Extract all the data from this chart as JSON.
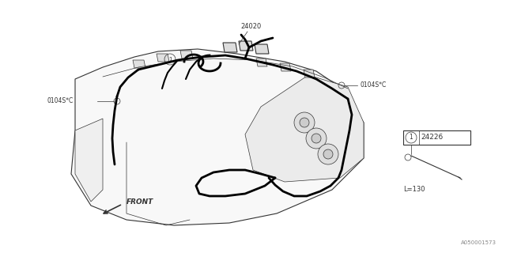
{
  "bg_color": "#ffffff",
  "line_color": "#333333",
  "thick_line_color": "#000000",
  "label_24020": "24020",
  "label_0104S_C_left": "0104S*C",
  "label_0104S_C_right": "0104S*C",
  "label_24226": "24226",
  "label_L130": "L=130",
  "label_front": "FRONT",
  "label_part_no": "A050001573",
  "label_circle1": "1",
  "fig_width": 6.4,
  "fig_height": 3.2,
  "dpi": 100
}
